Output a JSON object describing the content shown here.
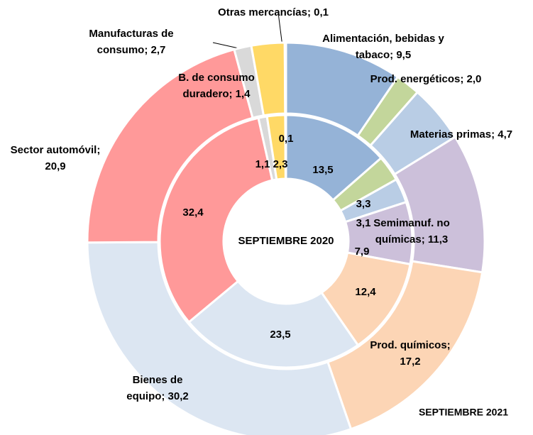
{
  "chart_data": {
    "type": "donut",
    "colors": [
      "#95b3d7",
      "#c3d69b",
      "#b9cde5",
      "#ccc0da",
      "#fcd5b5",
      "#dce6f2",
      "#ff9999",
      "#d9d9d9",
      "#ffd966",
      "#8c8c8c"
    ],
    "series": [
      {
        "name": "SEPTIEMBRE 2021",
        "values": [
          9.5,
          2.0,
          4.7,
          11.3,
          17.2,
          30.2,
          20.9,
          1.4,
          2.7,
          0.1
        ],
        "value_labels": [
          "Alimentación, bebidas y tabaco; 9,5",
          "Prod. energéticos; 2,0",
          "Materias primas; 4,7",
          "Semimanuf. no químicas; 11,3",
          "Prod. químicos; 17,2",
          "Bienes de equipo; 30,2",
          "Sector automóvil; 20,9",
          "B. de consumo duradero; 1,4",
          "Manufacturas de consumo; 2,7",
          "Otras mercancías; 0,1"
        ]
      },
      {
        "name": "SEPTIEMBRE 2020",
        "values": [
          13.5,
          3.3,
          3.1,
          7.9,
          12.4,
          23.5,
          32.4,
          1.1,
          2.3,
          0.1
        ],
        "value_labels": [
          "13,5",
          "3,3",
          "3,1",
          "7,9",
          "12,4",
          "23,5",
          "32,4",
          "1,1",
          "2,3",
          "0,1"
        ]
      }
    ]
  }
}
